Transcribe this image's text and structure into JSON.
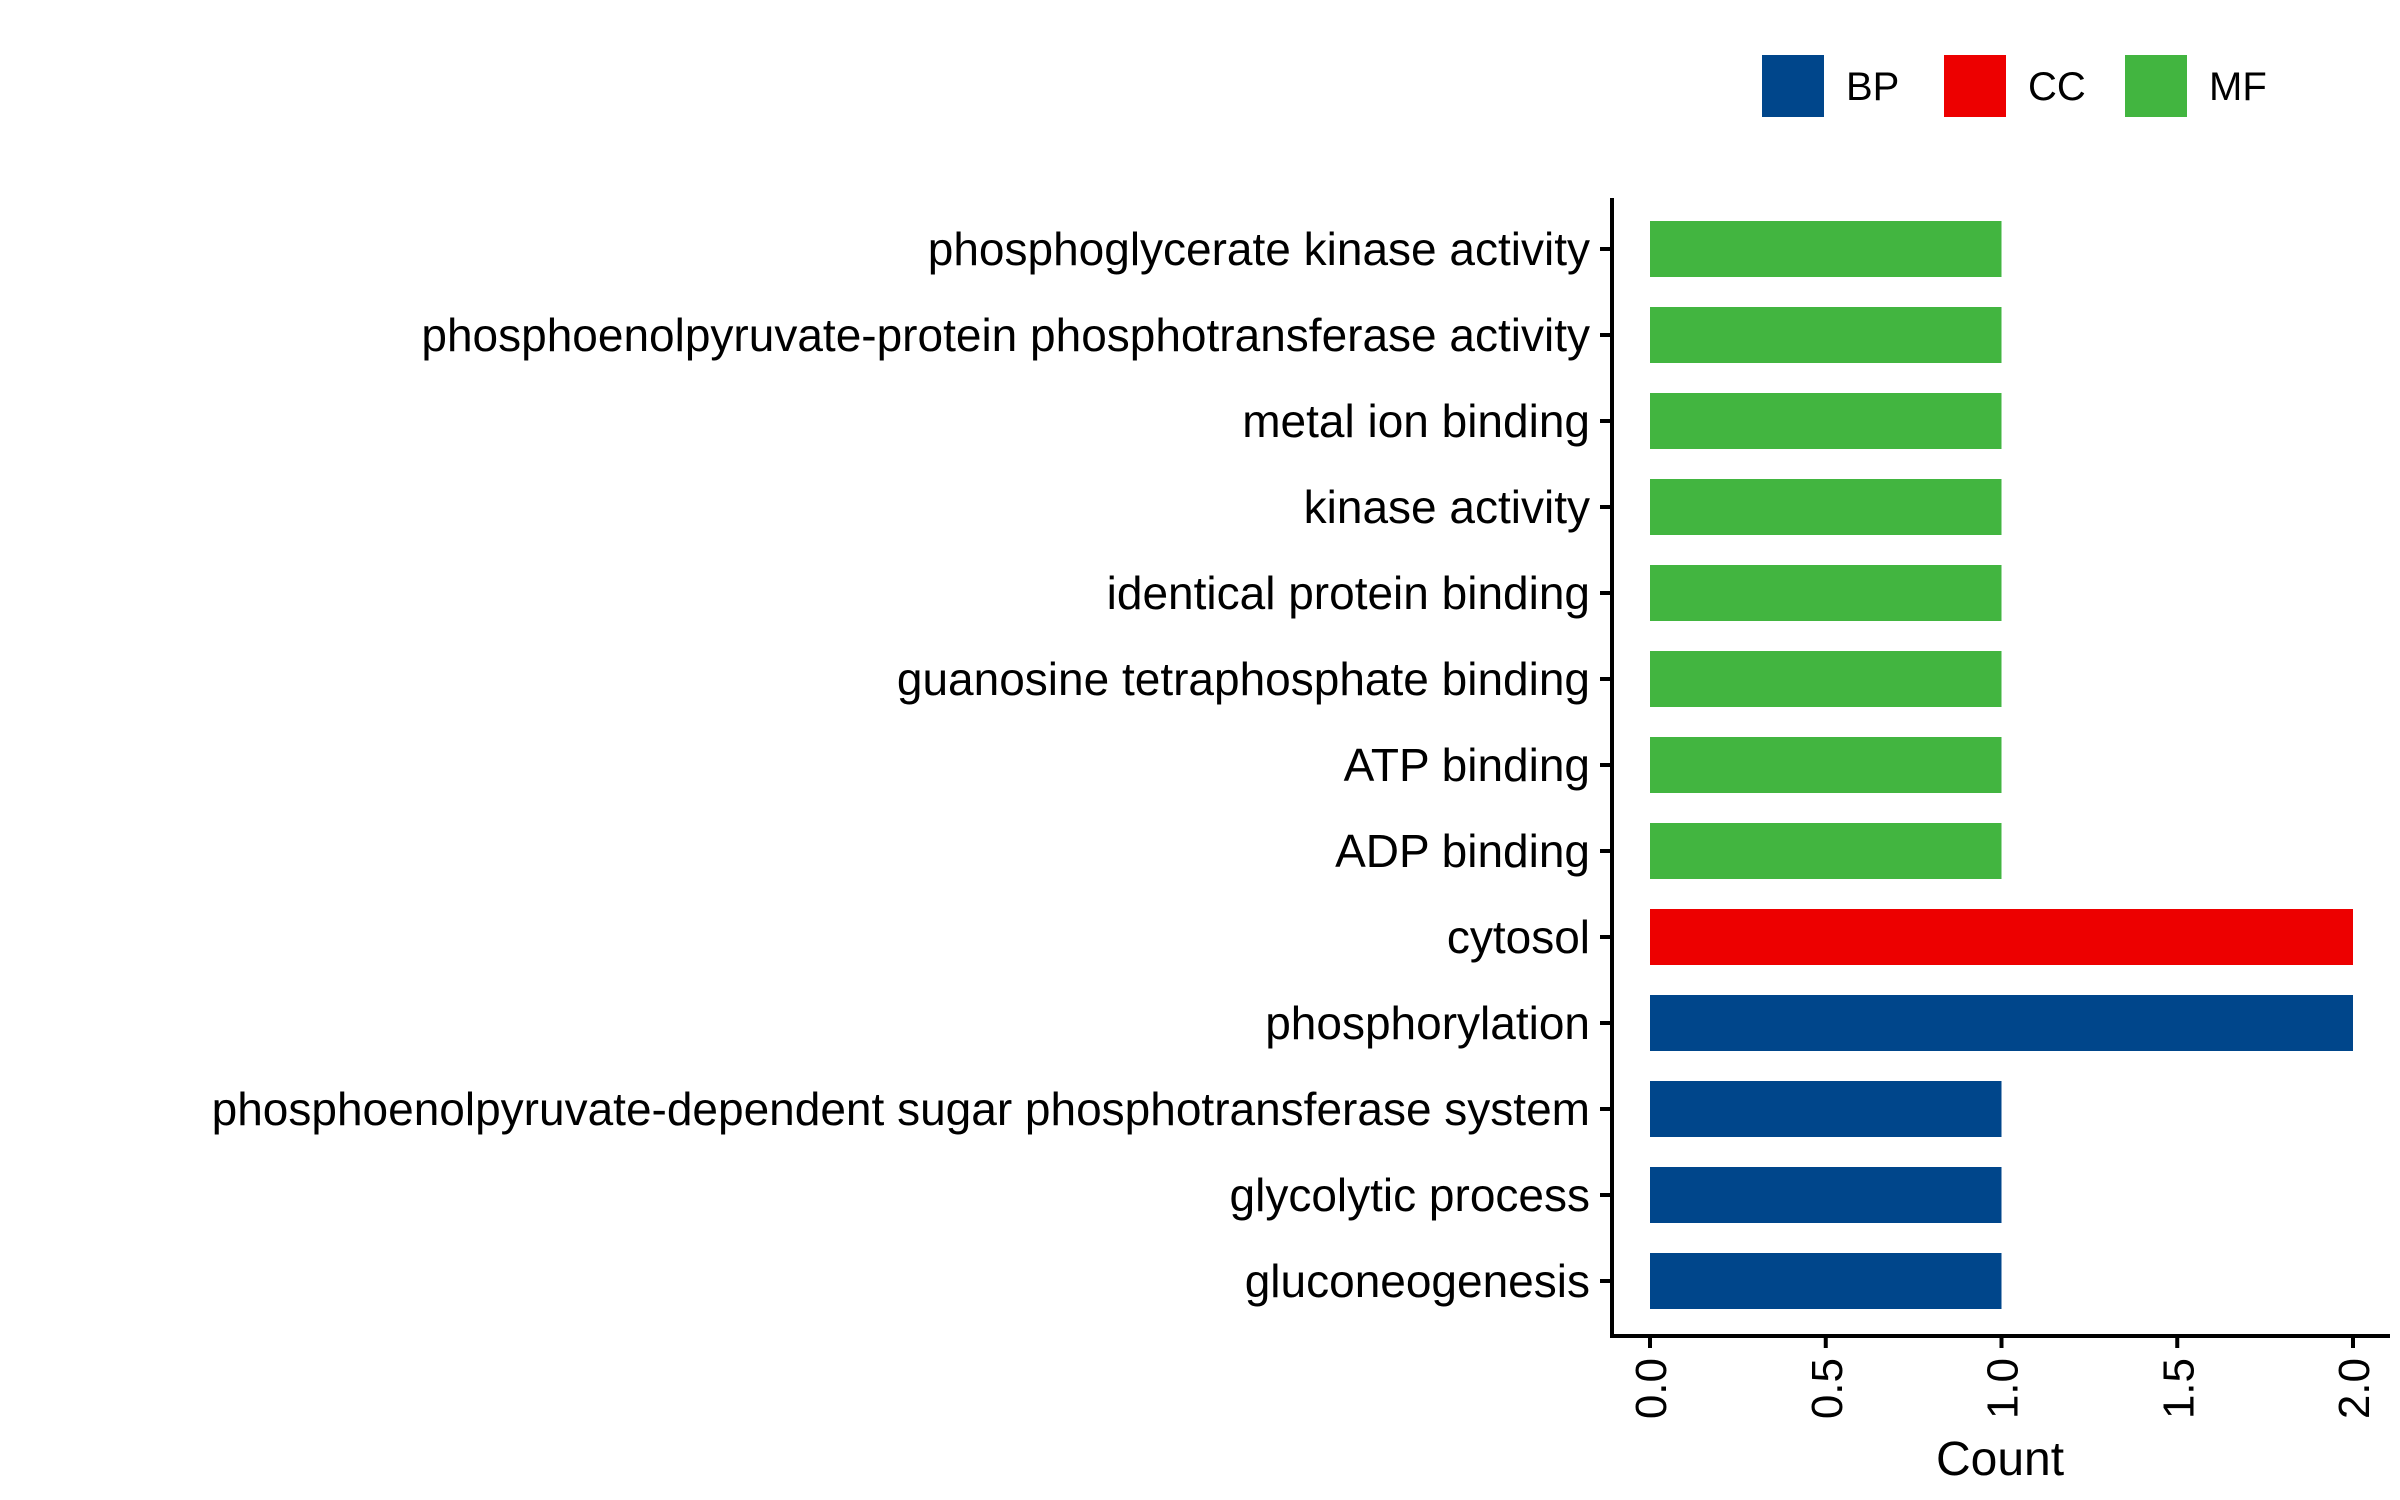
{
  "chart_data": {
    "type": "bar",
    "orientation": "horizontal",
    "title": "",
    "xlabel": "Count",
    "ylabel": "",
    "xlim": [
      0,
      2
    ],
    "x_ticks": [
      "0.0",
      "0.5",
      "1.0",
      "1.5",
      "2.0"
    ],
    "grid": false,
    "legend_position": "top-right",
    "legend": [
      {
        "name": "BP",
        "color": "#00468B"
      },
      {
        "name": "CC",
        "color": "#ED0000"
      },
      {
        "name": "MF",
        "color": "#42B540"
      }
    ],
    "categories": [
      "phosphoglycerate kinase activity",
      "phosphoenolpyruvate-protein phosphotransferase activity",
      "metal ion binding",
      "kinase activity",
      "identical protein binding",
      "guanosine tetraphosphate binding",
      "ATP binding",
      "ADP binding",
      "cytosol",
      "phosphorylation",
      "phosphoenolpyruvate-dependent sugar phosphotransferase system",
      "glycolytic process",
      "gluconeogenesis"
    ],
    "values": [
      1,
      1,
      1,
      1,
      1,
      1,
      1,
      1,
      2,
      2,
      1,
      1,
      1
    ],
    "groups": [
      "MF",
      "MF",
      "MF",
      "MF",
      "MF",
      "MF",
      "MF",
      "MF",
      "CC",
      "BP",
      "BP",
      "BP",
      "BP"
    ]
  }
}
